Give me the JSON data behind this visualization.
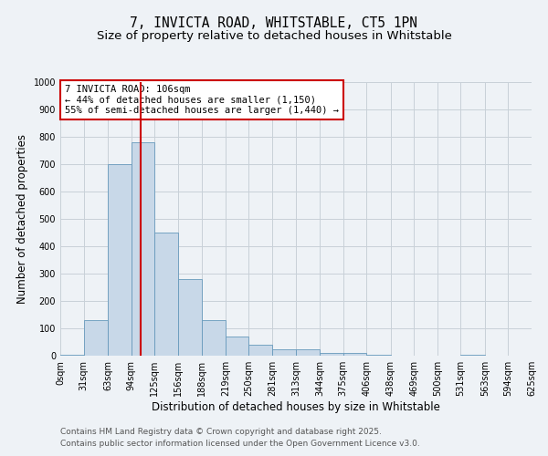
{
  "title": "7, INVICTA ROAD, WHITSTABLE, CT5 1PN",
  "subtitle": "Size of property relative to detached houses in Whitstable",
  "xlabel": "Distribution of detached houses by size in Whitstable",
  "ylabel": "Number of detached properties",
  "bin_edges": [
    0,
    31,
    63,
    94,
    125,
    156,
    188,
    219,
    250,
    281,
    313,
    344,
    375,
    406,
    438,
    469,
    500,
    531,
    563,
    594,
    625
  ],
  "bar_heights": [
    5,
    130,
    700,
    780,
    450,
    280,
    130,
    70,
    40,
    25,
    25,
    10,
    10,
    5,
    0,
    0,
    0,
    5,
    0,
    0
  ],
  "bar_color": "#c8d8e8",
  "bar_edge_color": "#6699bb",
  "vline_x": 106,
  "vline_color": "#cc0000",
  "annotation_text": "7 INVICTA ROAD: 106sqm\n← 44% of detached houses are smaller (1,150)\n55% of semi-detached houses are larger (1,440) →",
  "annotation_box_color": "#ffffff",
  "annotation_box_edge": "#cc0000",
  "ylim": [
    0,
    1000
  ],
  "yticks": [
    0,
    100,
    200,
    300,
    400,
    500,
    600,
    700,
    800,
    900,
    1000
  ],
  "tick_labels": [
    "0sqm",
    "31sqm",
    "63sqm",
    "94sqm",
    "125sqm",
    "156sqm",
    "188sqm",
    "219sqm",
    "250sqm",
    "281sqm",
    "313sqm",
    "344sqm",
    "375sqm",
    "406sqm",
    "438sqm",
    "469sqm",
    "500sqm",
    "531sqm",
    "563sqm",
    "594sqm",
    "625sqm"
  ],
  "footnote1": "Contains HM Land Registry data © Crown copyright and database right 2025.",
  "footnote2": "Contains public sector information licensed under the Open Government Licence v3.0.",
  "bg_color": "#eef2f6",
  "grid_color": "#c8d0d8",
  "title_fontsize": 10.5,
  "subtitle_fontsize": 9.5,
  "axis_label_fontsize": 8.5,
  "tick_fontsize": 7,
  "annotation_fontsize": 7.5,
  "footnote_fontsize": 6.5
}
